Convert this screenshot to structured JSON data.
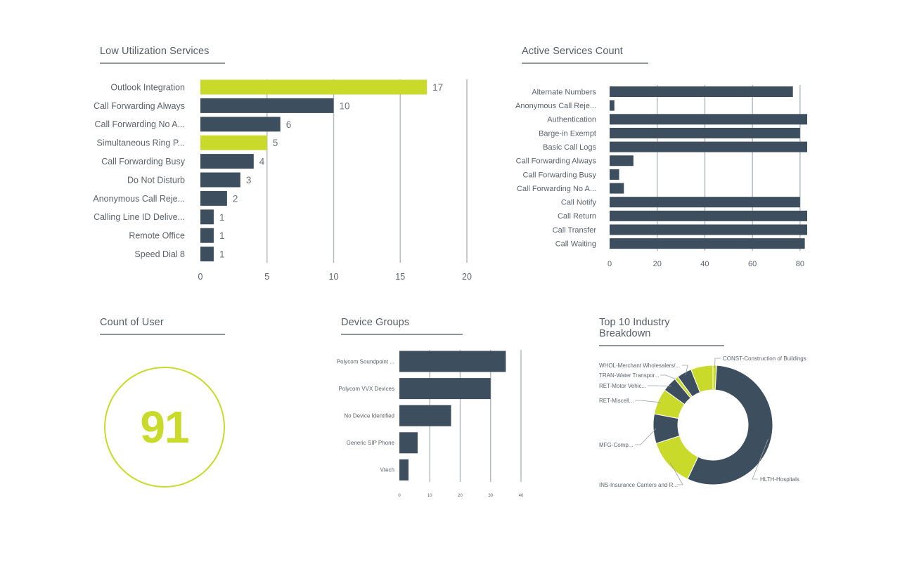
{
  "panels": {
    "low_util_title": "Low Utilization Services",
    "active_title": "Active Services Count",
    "count_title": "Count of User",
    "device_title": "Device Groups",
    "industry_title": "Top 10 Industry Breakdown"
  },
  "counter": {
    "value": "91"
  },
  "colors": {
    "navy": "#3d4f5f",
    "lime": "#c9da2b",
    "grid": "#b7bbbf",
    "text": "#5a636b"
  },
  "chart_data": [
    {
      "id": "low_util",
      "type": "bar",
      "orientation": "horizontal",
      "title": "Low Utilization Services",
      "categories": [
        "Outlook Integration",
        "Call Forwarding Always",
        "Call Forwarding No A...",
        "Simultaneous Ring P...",
        "Call Forwarding Busy",
        "Do Not Disturb",
        "Anonymous Call Reje...",
        "Calling Line ID Delive...",
        "Remote Office",
        "Speed Dial 8"
      ],
      "values": [
        17,
        10,
        6,
        5,
        4,
        3,
        2,
        1,
        1,
        1
      ],
      "highlight": [
        true,
        false,
        false,
        true,
        false,
        false,
        false,
        false,
        false,
        false
      ],
      "xlim": [
        0,
        20
      ],
      "ticks": [
        0,
        5,
        10,
        15,
        20
      ],
      "data_labels": true,
      "grid": true
    },
    {
      "id": "active",
      "type": "bar",
      "orientation": "horizontal",
      "title": "Active Services Count",
      "categories": [
        "Alternate Numbers",
        "Anonymous Call Reje...",
        "Authentication",
        "Barge-in Exempt",
        "Basic Call Logs",
        "Call Forwarding Always",
        "Call Forwarding Busy",
        "Call Forwarding No A...",
        "Call Notify",
        "Call Return",
        "Call Transfer",
        "Call Waiting"
      ],
      "values": [
        77,
        2,
        83,
        80,
        83,
        10,
        4,
        6,
        80,
        83,
        83,
        82
      ],
      "xlim": [
        0,
        83
      ],
      "ticks": [
        0,
        20,
        40,
        60,
        80
      ],
      "grid": true
    },
    {
      "id": "device",
      "type": "bar",
      "orientation": "horizontal",
      "title": "Device Groups",
      "categories": [
        "Polycom Soundpoint ...",
        "Polycom VVX Devices",
        "No Device Identified",
        "Generic SIP Phone",
        "Vtech"
      ],
      "values": [
        35,
        30,
        17,
        6,
        3
      ],
      "xlim": [
        0,
        40
      ],
      "ticks": [
        0,
        10,
        20,
        30,
        40
      ],
      "grid": true
    },
    {
      "id": "industry",
      "type": "pie",
      "donut": true,
      "title": "Top 10 Industry Breakdown",
      "slices": [
        {
          "label": "CONST-Construction of Buildings",
          "value": 1,
          "color": "lime"
        },
        {
          "label": "HLTH-Hospitals",
          "value": 56,
          "color": "navy"
        },
        {
          "label": "INS-Insurance Carriers and R...",
          "value": 13,
          "color": "lime"
        },
        {
          "label": "MFG-Comp...",
          "value": 8,
          "color": "navy"
        },
        {
          "label": "RET-Miscell...",
          "value": 7,
          "color": "lime"
        },
        {
          "label": "RET-Motor Vehic...",
          "value": 4,
          "color": "navy"
        },
        {
          "label": "TRAN-Water Transpor...",
          "value": 1,
          "color": "lime"
        },
        {
          "label": "WHOL-Merchant Wholesalers/...",
          "value": 4,
          "color": "navy"
        },
        {
          "label": "",
          "value": 6,
          "color": "lime"
        }
      ]
    }
  ]
}
